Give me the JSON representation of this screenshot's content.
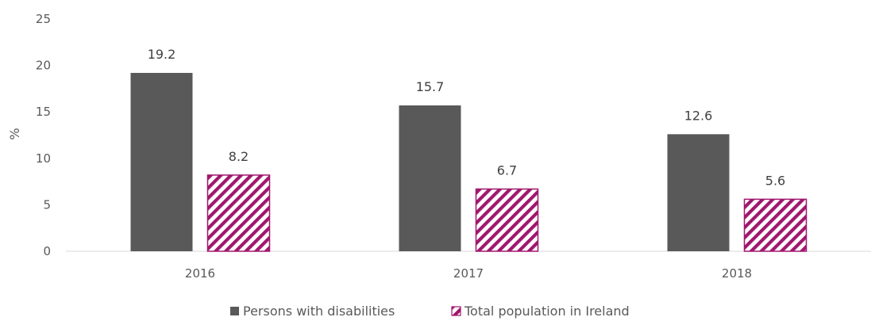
{
  "chart_data": {
    "type": "bar",
    "title": "",
    "xlabel": "",
    "ylabel": "%",
    "categories": [
      "2016",
      "2017",
      "2018"
    ],
    "series": [
      {
        "name": "Persons with disabilities",
        "values": [
          19.2,
          15.7,
          12.6
        ],
        "color": "#595959",
        "pattern": "solid"
      },
      {
        "name": "Total population in Ireland",
        "values": [
          8.2,
          6.7,
          5.6
        ],
        "color": "#a0176e",
        "pattern": "diagonal-hatch"
      }
    ],
    "ylim": [
      0,
      25
    ],
    "yticks": [
      0,
      5,
      10,
      15,
      20,
      25
    ],
    "grid": false,
    "legend_position": "bottom",
    "data_labels": true
  }
}
